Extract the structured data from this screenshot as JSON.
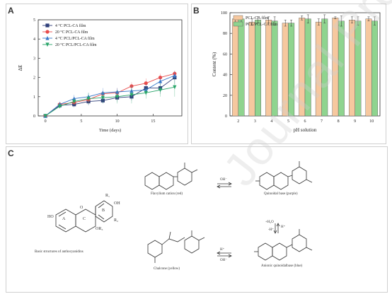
{
  "panels": {
    "a": "A",
    "b": "B",
    "c": "C"
  },
  "chart_data": [
    {
      "type": "line",
      "xlabel": "Time (days)",
      "ylabel": "ΔE",
      "xlim": [
        -1,
        19
      ],
      "ylim": [
        0,
        5
      ],
      "xticks": [
        0,
        5,
        10,
        15
      ],
      "yticks": [
        0,
        1,
        2,
        3,
        4,
        5
      ],
      "legend_position": "top-left",
      "x": [
        0,
        2,
        4,
        6,
        8,
        10,
        12,
        14,
        16,
        18
      ],
      "series": [
        {
          "name": "4 °C PCL-CA film",
          "color": "#2f3f7a",
          "marker": "square",
          "values": [
            0.0,
            0.55,
            0.6,
            0.75,
            0.8,
            0.95,
            1.0,
            1.45,
            1.45,
            2.0
          ],
          "errors": [
            0.02,
            0.1,
            0.15,
            0.2,
            0.15,
            0.2,
            0.2,
            0.25,
            0.3,
            0.35
          ]
        },
        {
          "name": "20 °C PCL-CA film",
          "color": "#e84b4b",
          "marker": "circle",
          "values": [
            0.0,
            0.6,
            0.7,
            0.85,
            1.15,
            1.2,
            1.55,
            1.7,
            2.0,
            2.2
          ],
          "errors": [
            0.02,
            0.1,
            0.15,
            0.2,
            0.15,
            0.25,
            0.2,
            0.25,
            0.2,
            0.15
          ]
        },
        {
          "name": "4 °C PCL/PCL-CA film",
          "color": "#3a78c9",
          "marker": "triangle-up",
          "values": [
            0.0,
            0.6,
            0.9,
            1.0,
            1.2,
            1.25,
            1.3,
            1.35,
            1.8,
            2.1
          ],
          "errors": [
            0.02,
            0.15,
            0.2,
            0.2,
            0.25,
            0.2,
            0.3,
            0.3,
            0.2,
            0.2
          ]
        },
        {
          "name": "20 °C PCL/PCL-CA film",
          "color": "#2aa56a",
          "marker": "triangle-down",
          "values": [
            0.0,
            0.5,
            0.75,
            0.9,
            0.95,
            1.0,
            1.1,
            1.2,
            1.35,
            1.5
          ],
          "errors": [
            0.02,
            0.1,
            0.15,
            0.3,
            0.3,
            0.35,
            0.45,
            0.3,
            0.35,
            0.5
          ]
        }
      ]
    },
    {
      "type": "bar",
      "xlabel": "pH solution",
      "ylabel": "Content (%)",
      "ylim": [
        0,
        100
      ],
      "yticks": [
        0,
        20,
        40,
        60,
        80,
        100
      ],
      "legend_position": "top-left",
      "categories": [
        "2",
        "3",
        "4",
        "5",
        "6",
        "7",
        "8",
        "9",
        "10"
      ],
      "series": [
        {
          "name": "PCL-CA film",
          "color": "#f6c89f",
          "values": [
            94,
            91,
            93,
            90,
            95,
            91,
            95,
            93,
            94
          ],
          "errors": [
            3,
            3,
            3,
            3,
            2,
            3,
            1,
            3,
            2
          ]
        },
        {
          "name": "PCL/PCL-CA film",
          "color": "#8fd48f",
          "values": [
            94,
            93,
            92,
            90,
            94,
            94,
            92,
            92,
            92
          ],
          "errors": [
            3,
            3,
            4,
            3,
            4,
            4,
            5,
            4,
            4
          ]
        }
      ]
    }
  ],
  "scheme": {
    "labels": {
      "basic": "Basic structures of anthocyanidins",
      "flavylium": "Flavylium cation (red)",
      "quinoidal": "Quinoidal base (purple)",
      "chalcone": "Chalcone (yellow)",
      "anionic": "Anionic quinoidalbase (blue)"
    },
    "reagents": {
      "oh1": "OH⁻",
      "h2o": "+H₂O",
      "h_plus": "H⁺",
      "h_minus": "-H⁺",
      "h2": "H⁺",
      "oh2": "OH⁻"
    },
    "atom_labels": {
      "r1": "R₁",
      "r2": "R₂",
      "r3": "OR₃",
      "oh": "OH",
      "ho": "HO",
      "o": "O",
      "ring_a": "A",
      "ring_b": "B",
      "ring_c": "C"
    }
  },
  "watermark": "Journal Pre-proofs"
}
